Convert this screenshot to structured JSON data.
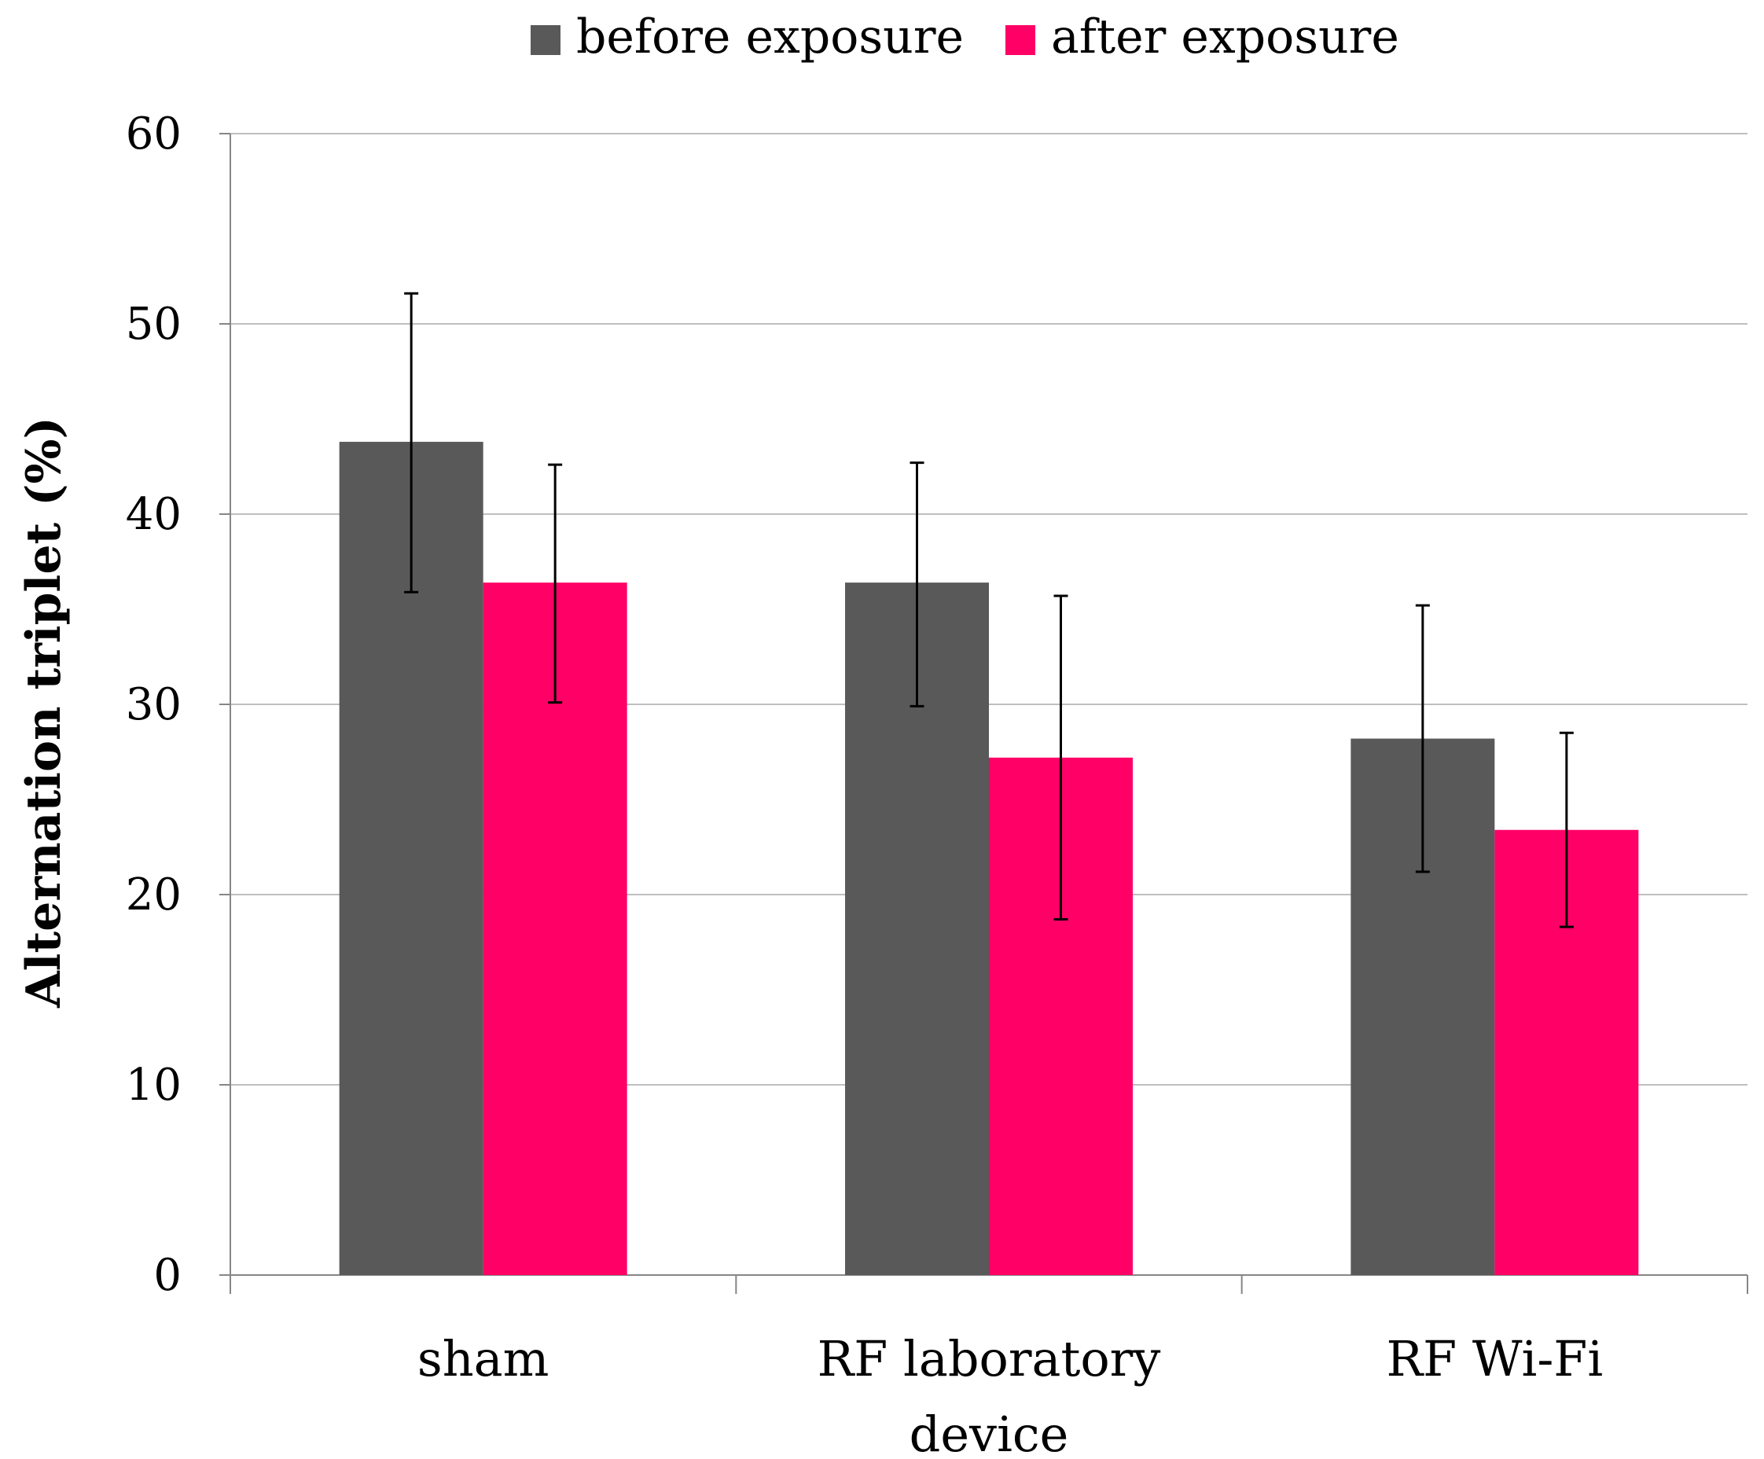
{
  "chart_data": {
    "type": "bar",
    "title": "",
    "xlabel": "",
    "ylabel": "Alternation triplet (%)",
    "ylim": [
      0,
      60
    ],
    "yticks": [
      0,
      10,
      20,
      30,
      40,
      50,
      60
    ],
    "grid": true,
    "legend_position": "top",
    "categories": [
      {
        "lines": [
          "sham"
        ]
      },
      {
        "lines": [
          "RF laboratory",
          "device"
        ]
      },
      {
        "lines": [
          "RF Wi-Fi"
        ]
      }
    ],
    "series": [
      {
        "name": "before exposure",
        "color": "#595959",
        "values": [
          43.8,
          36.4,
          28.2
        ],
        "error_low": [
          35.9,
          29.9,
          21.2
        ],
        "error_high": [
          51.6,
          42.7,
          35.2
        ]
      },
      {
        "name": "after exposure",
        "color": "#ff0066",
        "values": [
          36.4,
          27.2,
          23.4
        ],
        "error_low": [
          30.1,
          18.7,
          18.3
        ],
        "error_high": [
          42.6,
          35.7,
          28.5
        ]
      }
    ]
  }
}
